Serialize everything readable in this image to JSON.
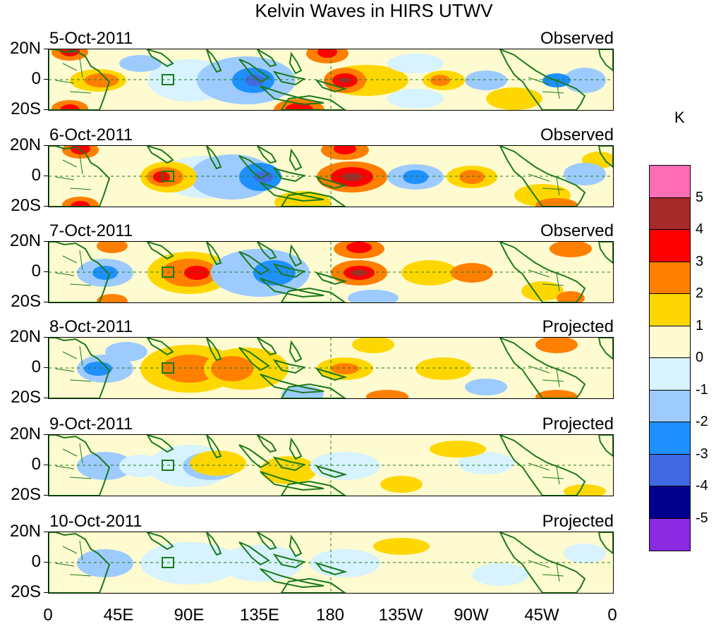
{
  "title": "Kelvin Waves in HIRS UTWV",
  "lat_labels": [
    "20N",
    "0",
    "20S"
  ],
  "x_axis_labels": [
    "0",
    "45E",
    "90E",
    "135E",
    "180",
    "135W",
    "90W",
    "45W",
    "0"
  ],
  "panels": [
    {
      "date": "5-Oct-2011",
      "status": "Observed"
    },
    {
      "date": "6-Oct-2011",
      "status": "Observed"
    },
    {
      "date": "7-Oct-2011",
      "status": "Observed"
    },
    {
      "date": "8-Oct-2011",
      "status": "Projected"
    },
    {
      "date": "9-Oct-2011",
      "status": "Projected"
    },
    {
      "date": "10-Oct-2011",
      "status": "Projected"
    }
  ],
  "legend": {
    "unit": "K",
    "labels": [
      "5",
      "4",
      "3",
      "2",
      "1",
      "0",
      "-1",
      "-2",
      "-3",
      "-4",
      "-5"
    ],
    "colors": [
      "#ff6eb4",
      "#a52a2a",
      "#ff0000",
      "#ff7f00",
      "#ffd700",
      "#fffbd0",
      "#d6f3ff",
      "#9dcbff",
      "#1e90ff",
      "#4169e1",
      "#00008b",
      "#8a2be2"
    ]
  },
  "colors": {
    "coast": "#1a7a1a",
    "grid": "#1a7a1a"
  }
}
